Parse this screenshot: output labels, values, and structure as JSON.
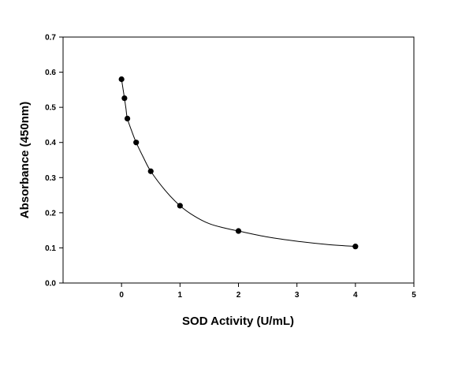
{
  "chart_data": {
    "type": "scatter",
    "title": "",
    "xlabel": "SOD Activity (U/mL)",
    "ylabel": "Absorbance (450nm)",
    "xlim": [
      -1,
      5
    ],
    "ylim": [
      0.0,
      0.7
    ],
    "x_ticks": [
      0,
      1,
      2,
      3,
      4,
      5
    ],
    "y_ticks": [
      0.0,
      0.1,
      0.2,
      0.3,
      0.4,
      0.5,
      0.6,
      0.7
    ],
    "x_tick_labels": [
      "0",
      "1",
      "2",
      "3",
      "4",
      "5"
    ],
    "y_tick_labels": [
      "0.0",
      "0.1",
      "0.2",
      "0.3",
      "0.4",
      "0.5",
      "0.6",
      "0.7"
    ],
    "grid": false,
    "legend": "none",
    "series": [
      {
        "style": "markers",
        "color": "#000000",
        "x": [
          0,
          0.05,
          0.1,
          0.25,
          0.5,
          1,
          2,
          4
        ],
        "y": [
          0.58,
          0.526,
          0.468,
          0.4,
          0.318,
          0.22,
          0.148,
          0.104
        ]
      }
    ],
    "fit_curve": {
      "style": "line",
      "color": "#000000",
      "x": [
        0,
        0.025,
        0.05,
        0.075,
        0.1,
        0.175,
        0.25,
        0.375,
        0.5,
        0.75,
        1,
        1.25,
        1.5,
        1.75,
        2,
        2.5,
        3,
        3.5,
        4
      ],
      "y": [
        0.58,
        0.553,
        0.526,
        0.497,
        0.468,
        0.432,
        0.4,
        0.357,
        0.318,
        0.263,
        0.22,
        0.19,
        0.169,
        0.157,
        0.148,
        0.131,
        0.119,
        0.11,
        0.104
      ]
    }
  }
}
